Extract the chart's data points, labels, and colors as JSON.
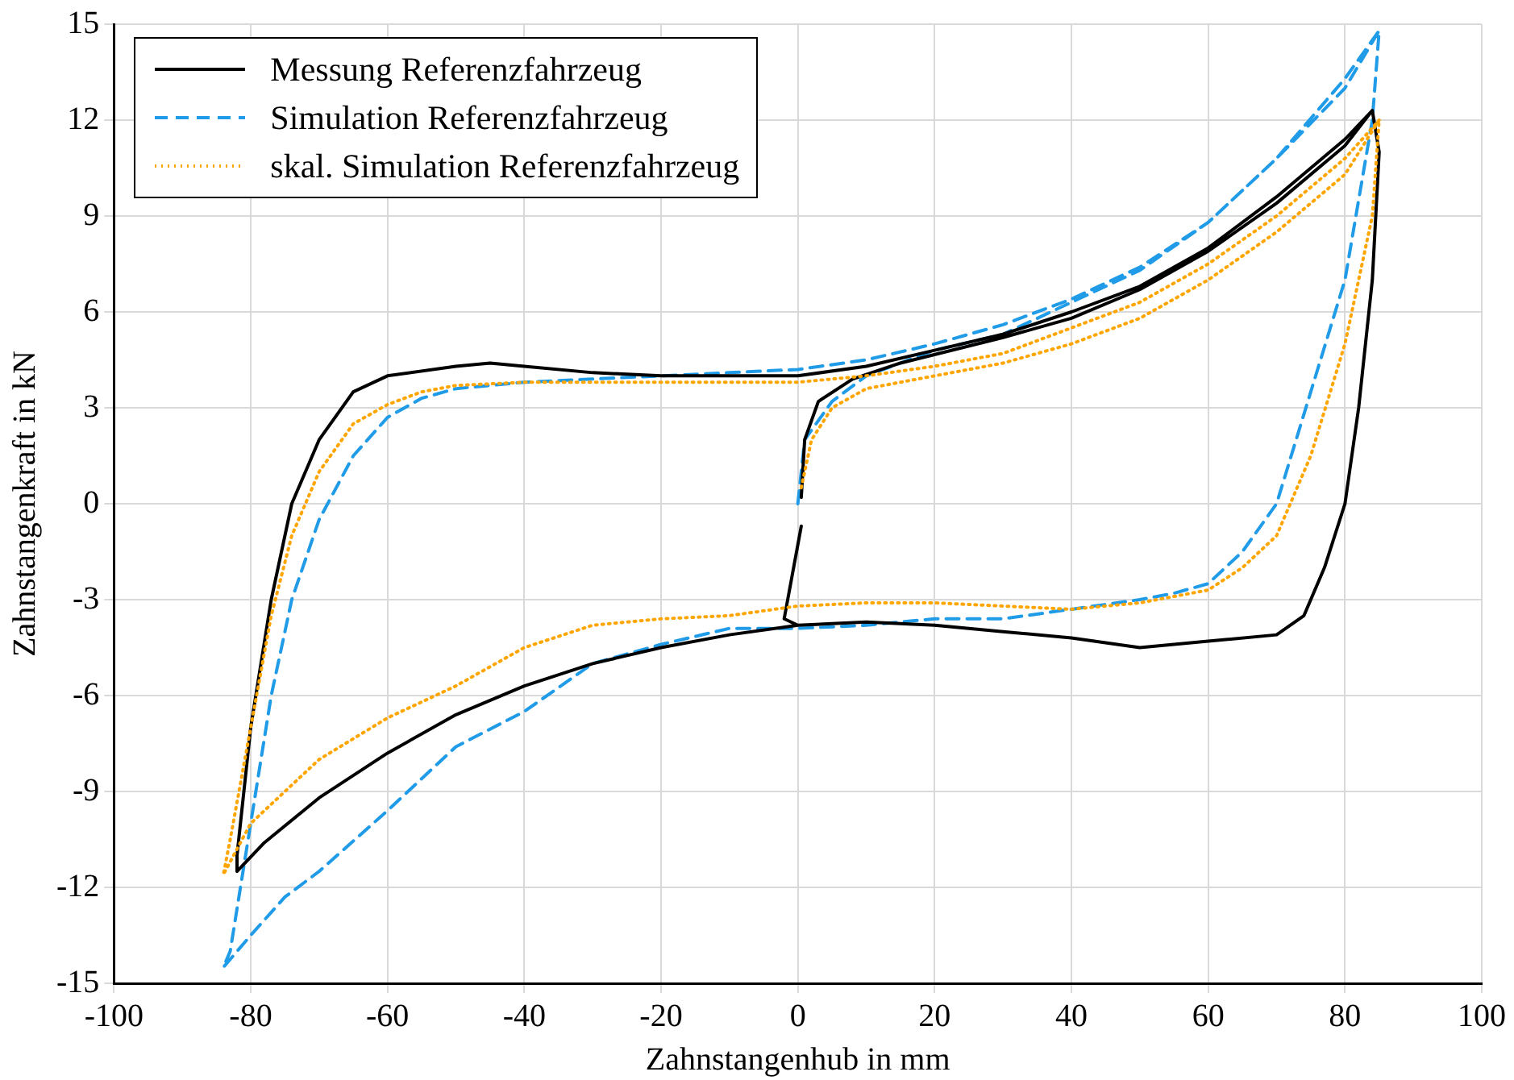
{
  "chart_data": {
    "type": "line",
    "xlabel": "Zahnstangenhub in mm",
    "ylabel": "Zahnstangenkraft in kN",
    "xlim": [
      -100,
      100
    ],
    "xticks": [
      -100,
      -80,
      -60,
      -40,
      -20,
      0,
      20,
      40,
      60,
      80,
      100
    ],
    "ylim": [
      -15,
      15
    ],
    "yticks": [
      -15,
      -12,
      -9,
      -6,
      -3,
      0,
      3,
      6,
      9,
      12,
      15
    ],
    "grid": true,
    "legend": "top left",
    "marker": "none",
    "series": [
      {
        "name": "Messung Referenzfahrzeug",
        "type": "line",
        "color": "#000000",
        "line_style": "solid",
        "x": [
          0.5,
          1,
          3,
          8,
          15,
          30,
          40,
          50,
          60,
          70,
          80,
          84,
          85,
          84,
          82,
          80,
          77,
          74,
          70,
          60,
          50,
          40,
          30,
          20,
          10,
          0,
          -10,
          -20,
          -30,
          -40,
          -50,
          -60,
          -70,
          -78,
          -82,
          -82,
          -80,
          -77,
          -74,
          -70,
          -65,
          -60,
          -50,
          -45,
          -40,
          -30,
          -20,
          -10,
          0,
          10,
          20,
          30,
          40,
          50,
          60,
          70,
          80,
          84,
          85,
          84,
          82,
          80,
          77,
          74,
          70,
          60,
          50,
          40,
          30,
          20,
          10,
          0,
          -2,
          0.5
        ],
        "values": [
          0.2,
          2,
          3.2,
          3.9,
          4.4,
          5.2,
          5.8,
          6.7,
          7.9,
          9.4,
          11.2,
          12.3,
          11,
          7,
          3,
          0,
          -2,
          -3.5,
          -4.1,
          -4.3,
          -4.5,
          -4.2,
          -4,
          -3.8,
          -3.7,
          -3.8,
          -4.1,
          -4.5,
          -5,
          -5.7,
          -6.6,
          -7.8,
          -9.2,
          -10.6,
          -11.5,
          -11,
          -7,
          -3,
          0,
          2,
          3.5,
          4,
          4.3,
          4.4,
          4.3,
          4.1,
          4,
          4,
          4,
          4.3,
          4.8,
          5.3,
          6,
          6.8,
          8,
          9.6,
          11.4,
          12.3,
          11,
          7,
          3,
          0,
          -2,
          -3.5,
          -4.1,
          -4.3,
          -4.5,
          -4.2,
          -4,
          -3.8,
          -3.7,
          -3.8,
          -3.6,
          -0.7
        ]
      },
      {
        "name": "Simulation Referenzfahrzeug",
        "type": "line",
        "color": "#1f9be8",
        "line_style": "dashed",
        "x": [
          0,
          1,
          5,
          10,
          20,
          30,
          40,
          50,
          60,
          70,
          80,
          85,
          84,
          80,
          75,
          70,
          65,
          60,
          55,
          50,
          40,
          30,
          20,
          10,
          0,
          -10,
          -20,
          -30,
          -40,
          -50,
          -60,
          -70,
          -75,
          -80,
          -84,
          -83,
          -80,
          -77,
          -74,
          -70,
          -65,
          -60,
          -55,
          -50,
          -40,
          -30,
          -20,
          -10,
          0,
          10,
          20,
          30,
          40,
          50,
          60,
          70,
          80,
          85
        ],
        "values": [
          0,
          2,
          3.2,
          4,
          4.8,
          5.3,
          6.3,
          7.3,
          8.8,
          10.8,
          13,
          14.8,
          12,
          7,
          3.5,
          0,
          -1.5,
          -2.5,
          -2.8,
          -3,
          -3.3,
          -3.6,
          -3.6,
          -3.8,
          -3.9,
          -3.9,
          -4.4,
          -5,
          -6.5,
          -7.6,
          -9.6,
          -11.5,
          -12.3,
          -13.5,
          -14.5,
          -14,
          -10,
          -6,
          -3,
          -0.5,
          1.5,
          2.7,
          3.3,
          3.6,
          3.8,
          3.9,
          4,
          4.1,
          4.2,
          4.5,
          5,
          5.6,
          6.4,
          7.4,
          8.8,
          10.8,
          13.3,
          14.8
        ]
      },
      {
        "name": "skal. Simulation Referenzfahrzeug",
        "type": "line",
        "color": "#ffa500",
        "line_style": "dotted",
        "x": [
          0.5,
          2,
          5,
          10,
          20,
          30,
          40,
          50,
          60,
          70,
          80,
          85,
          84,
          80,
          75,
          70,
          65,
          60,
          50,
          40,
          30,
          20,
          10,
          0,
          -10,
          -20,
          -30,
          -40,
          -50,
          -60,
          -70,
          -75,
          -80,
          -84,
          -83,
          -80,
          -77,
          -74,
          -70,
          -65,
          -60,
          -55,
          -50,
          -40,
          -30,
          -20,
          -10,
          0,
          10,
          20,
          30,
          40,
          50,
          60,
          70,
          80,
          85
        ],
        "values": [
          0.5,
          2,
          3,
          3.6,
          4,
          4.4,
          5,
          5.8,
          7,
          8.5,
          10.3,
          12,
          9,
          5,
          1.5,
          -1,
          -2,
          -2.7,
          -3.1,
          -3.3,
          -3.2,
          -3.1,
          -3.1,
          -3.2,
          -3.5,
          -3.6,
          -3.8,
          -4.5,
          -5.7,
          -6.7,
          -8,
          -9,
          -10,
          -11.6,
          -10.5,
          -7,
          -3.5,
          -1,
          1,
          2.5,
          3.1,
          3.5,
          3.7,
          3.8,
          3.8,
          3.8,
          3.8,
          3.8,
          4,
          4.3,
          4.7,
          5.5,
          6.3,
          7.5,
          9,
          10.8,
          12
        ]
      }
    ]
  }
}
